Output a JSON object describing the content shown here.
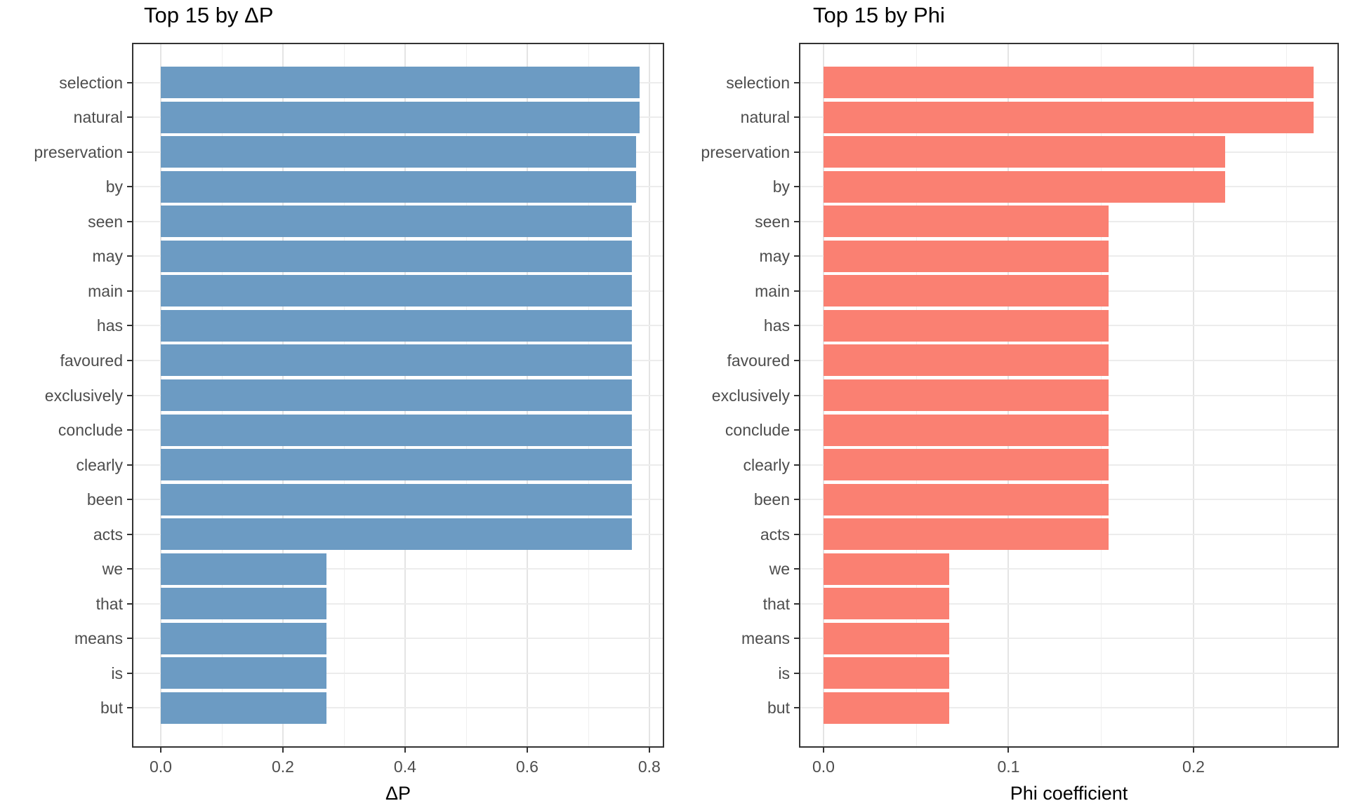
{
  "page": {
    "background": "#ffffff"
  },
  "chart_data": [
    {
      "type": "bar",
      "orientation": "horizontal",
      "title": "Top 15 by ΔP",
      "xlabel": "ΔP",
      "ylabel": "",
      "legend": "none",
      "grid": true,
      "bar_color": "#6c9bc3",
      "categories": [
        "selection",
        "natural",
        "preservation",
        "by",
        "seen",
        "may",
        "main",
        "has",
        "favoured",
        "exclusively",
        "conclude",
        "clearly",
        "been",
        "acts",
        "we",
        "that",
        "means",
        "is",
        "but"
      ],
      "values": [
        0.784,
        0.784,
        0.778,
        0.778,
        0.771,
        0.771,
        0.771,
        0.771,
        0.771,
        0.771,
        0.771,
        0.771,
        0.771,
        0.771,
        0.271,
        0.271,
        0.271,
        0.271,
        0.271
      ],
      "x_ticks": [
        {
          "label": "0.0",
          "value": 0.0
        },
        {
          "label": "0.2",
          "value": 0.2
        },
        {
          "label": "0.4",
          "value": 0.4
        },
        {
          "label": "0.6",
          "value": 0.6
        },
        {
          "label": "0.8",
          "value": 0.8
        }
      ],
      "x_minor_ticks": [
        0.1,
        0.3,
        0.5,
        0.7
      ],
      "xlim_edge": 0.822,
      "zero_frac": 0.0517
    },
    {
      "type": "bar",
      "orientation": "horizontal",
      "title": "Top 15 by Phi",
      "xlabel": "Phi coefficient",
      "ylabel": "",
      "legend": "none",
      "grid": true,
      "bar_color": "#fa8072",
      "categories": [
        "selection",
        "natural",
        "preservation",
        "by",
        "seen",
        "may",
        "main",
        "has",
        "favoured",
        "exclusively",
        "conclude",
        "clearly",
        "been",
        "acts",
        "we",
        "that",
        "means",
        "is",
        "but"
      ],
      "values": [
        0.265,
        0.265,
        0.217,
        0.217,
        0.154,
        0.154,
        0.154,
        0.154,
        0.154,
        0.154,
        0.154,
        0.154,
        0.154,
        0.154,
        0.068,
        0.068,
        0.068,
        0.068,
        0.068
      ],
      "x_ticks": [
        {
          "label": "0.0",
          "value": 0.0
        },
        {
          "label": "0.1",
          "value": 0.1
        },
        {
          "label": "0.2",
          "value": 0.2
        }
      ],
      "x_minor_ticks": [
        0.05,
        0.15,
        0.25
      ],
      "xlim_edge": 0.2778,
      "zero_frac": 0.0431
    }
  ]
}
